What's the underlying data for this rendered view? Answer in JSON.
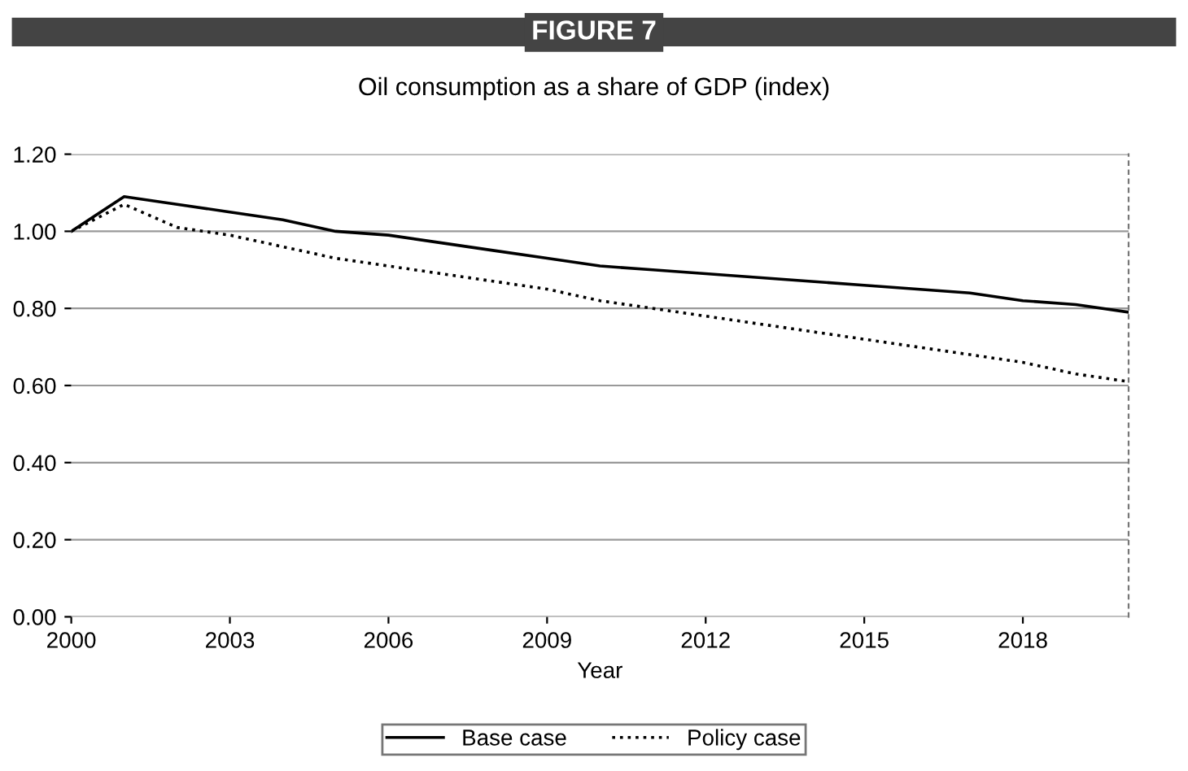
{
  "chart_data": {
    "type": "line",
    "title": "FIGURE 7",
    "subtitle": "Oil consumption as a share of GDP (index)",
    "xlabel": "Year",
    "x": [
      2000,
      2001,
      2002,
      2003,
      2004,
      2005,
      2006,
      2007,
      2008,
      2009,
      2010,
      2011,
      2012,
      2013,
      2014,
      2015,
      2016,
      2017,
      2018,
      2019,
      2020
    ],
    "series": [
      {
        "name": "Base case",
        "color": "#000000",
        "line_style": "solid",
        "values": [
          1.0,
          1.09,
          1.07,
          1.05,
          1.03,
          1.0,
          0.99,
          0.97,
          0.95,
          0.93,
          0.91,
          0.9,
          0.89,
          0.88,
          0.87,
          0.86,
          0.85,
          0.84,
          0.82,
          0.81,
          0.79
        ]
      },
      {
        "name": "Policy case",
        "color": "#000000",
        "line_style": "dotted",
        "values": [
          1.0,
          1.07,
          1.01,
          0.99,
          0.96,
          0.93,
          0.91,
          0.89,
          0.87,
          0.85,
          0.82,
          0.8,
          0.78,
          0.76,
          0.74,
          0.72,
          0.7,
          0.68,
          0.66,
          0.63,
          0.61
        ]
      }
    ],
    "xlim": [
      2000,
      2020
    ],
    "xticks": [
      2000,
      2003,
      2006,
      2009,
      2012,
      2015,
      2018
    ],
    "ylim": [
      0,
      1.2
    ],
    "yticks": [
      {
        "value": 0,
        "label": "0.00"
      },
      {
        "value": 0.2,
        "label": "0.20"
      },
      {
        "value": 0.4,
        "label": "0.40"
      },
      {
        "value": 0.6,
        "label": "0.60"
      },
      {
        "value": 0.8,
        "label": "0.80"
      },
      {
        "value": 1.0,
        "label": "1.00"
      },
      {
        "value": 1.2,
        "label": "1.20"
      }
    ],
    "grid": "y",
    "legend": "bottom",
    "marker": "none"
  }
}
